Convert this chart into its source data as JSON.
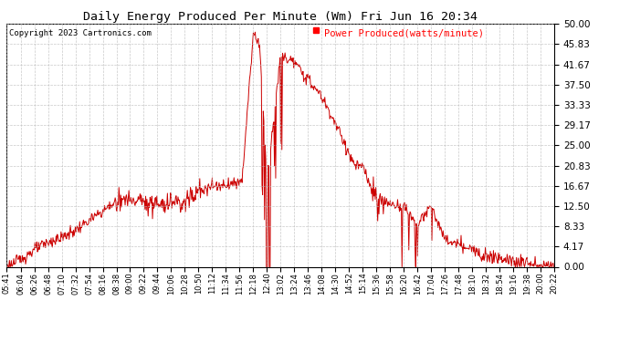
{
  "title": "Daily Energy Produced Per Minute (Wm) Fri Jun 16 20:34",
  "copyright": "Copyright 2023 Cartronics.com",
  "legend_label": "Power Produced(watts/minute)",
  "bg_color": "#ffffff",
  "line_color": "#cc0000",
  "grid_color": "#bbbbbb",
  "ymin": 0.0,
  "ymax": 50.0,
  "yticks": [
    0.0,
    4.17,
    8.33,
    12.5,
    16.67,
    20.83,
    25.0,
    29.17,
    33.33,
    37.5,
    41.67,
    45.83,
    50.0
  ],
  "xtick_labels": [
    "05:41",
    "06:04",
    "06:26",
    "06:48",
    "07:10",
    "07:32",
    "07:54",
    "08:16",
    "08:38",
    "09:00",
    "09:22",
    "09:44",
    "10:06",
    "10:28",
    "10:50",
    "11:12",
    "11:34",
    "11:56",
    "12:18",
    "12:40",
    "13:02",
    "13:24",
    "13:46",
    "14:08",
    "14:30",
    "14:52",
    "15:14",
    "15:36",
    "15:58",
    "16:20",
    "16:42",
    "17:04",
    "17:26",
    "17:48",
    "18:10",
    "18:32",
    "18:54",
    "19:16",
    "19:38",
    "20:00",
    "20:22"
  ]
}
